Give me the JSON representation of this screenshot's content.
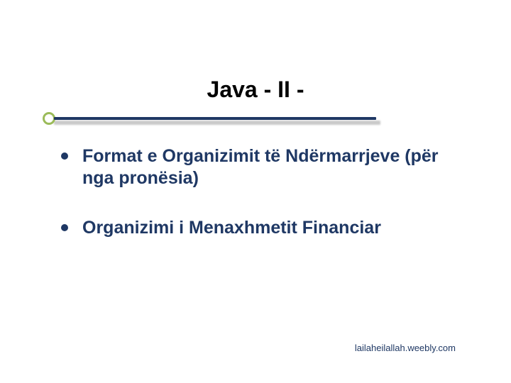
{
  "slide": {
    "title": "Java  - II -",
    "title_color": "#000000",
    "title_fontsize": 32,
    "underline": {
      "circle_border_color": "#9bbb59",
      "line_color": "#1f3864",
      "shadow_color": "#888888"
    },
    "bullets": [
      {
        "text": "Format e Organizimit  të Ndërmarrjeve (për nga pronësia)"
      },
      {
        "text": "Organizimi i Menaxhmetit Financiar"
      }
    ],
    "bullet_color": "#1f3864",
    "bullet_text_color": "#1f3864",
    "bullet_fontsize": 25,
    "footer": "lailaheilallah.weebly.com",
    "footer_color": "#1f3864",
    "footer_fontsize": 13,
    "background_color": "#ffffff"
  }
}
